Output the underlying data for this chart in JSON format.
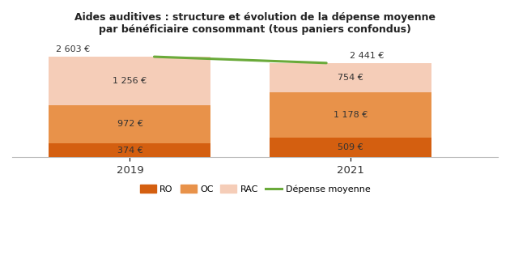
{
  "title": "Aides auditives : structure et évolution de la dépense moyenne\npar bénéficiaire consommant (tous paniers confondus)",
  "years": [
    "2019",
    "2021"
  ],
  "RO": [
    374,
    509
  ],
  "OC": [
    972,
    1178
  ],
  "RAC": [
    1256,
    754
  ],
  "total": [
    2603,
    2441
  ],
  "total_labels": [
    "2 603 €",
    "2 441 €"
  ],
  "ro_labels": [
    "374 €",
    "509 €"
  ],
  "oc_labels": [
    "972 €",
    "1 178 €"
  ],
  "rac_labels": [
    "1 256 €",
    "754 €"
  ],
  "color_ro": "#d45f10",
  "color_oc": "#e8924a",
  "color_rac": "#f5cdb8",
  "color_line": "#6aaa3a",
  "bar_width": 0.55,
  "bar_positions": [
    0.25,
    1.0
  ],
  "xlim": [
    -0.15,
    1.5
  ],
  "ylim": [
    0,
    3000
  ],
  "background_color": "#ffffff",
  "legend_labels": [
    "RO",
    "OC",
    "RAC",
    "Dépense moyenne"
  ]
}
